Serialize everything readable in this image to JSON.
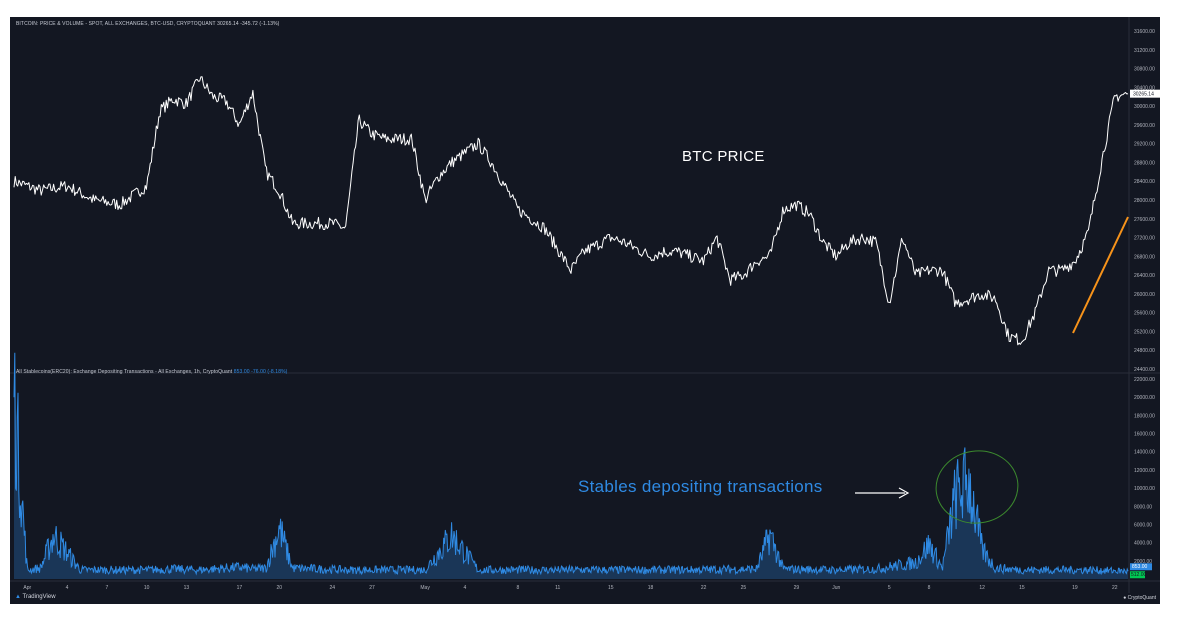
{
  "price_header": {
    "label": "BITCOIN: PRICE & VOLUME - SPOT, ALL EXCHANGES, BTC-USD, CRYPTOQUANT",
    "value": "30265.14",
    "change": "-345.72 (-1.13%)"
  },
  "stable_header": {
    "label": "All Stablecoins(ERC20): Exchange Depositing Transactions - All Exchanges, 1h, CryptoQuant",
    "value": "853.00",
    "change": "-76.00 (-8.18%)"
  },
  "annotations": {
    "btc_price": "BTC PRICE",
    "stables": "Stables depositing transactions"
  },
  "footer": {
    "tradingview": "TradingView",
    "cryptoquant": "CryptoQuant"
  },
  "colors": {
    "background": "#131722",
    "price_line": "#ffffff",
    "stable_line": "#2f8ae3",
    "trend_arrow": "#f7931a",
    "circle": "#3c8a2e",
    "last_stable_badge": "#00c853"
  },
  "chart_data": [
    {
      "type": "line",
      "series": [
        {
          "name": "",
          "points": [
            [
              "Mar 31",
              28400
            ],
            [
              "Apr 2",
              28200
            ],
            [
              "Apr 4",
              28300
            ],
            [
              "Apr 6",
              28000
            ],
            [
              "Apr 8",
              27900
            ],
            [
              "Apr 10",
              28300
            ],
            [
              "Apr 11",
              29900
            ],
            [
              "Apr 12",
              30150
            ],
            [
              "Apr 13",
              30050
            ],
            [
              "Apr 14",
              30600
            ],
            [
              "Apr 15",
              30200
            ],
            [
              "Apr 16",
              30100
            ],
            [
              "Apr 17",
              29600
            ],
            [
              "Apr 18",
              30300
            ],
            [
              "Apr 19",
              28600
            ],
            [
              "Apr 20",
              28200
            ],
            [
              "Apr 21",
              27500
            ],
            [
              "Apr 22",
              27500
            ],
            [
              "Apr 24",
              27500
            ],
            [
              "Apr 25",
              27400
            ],
            [
              "Apr 26",
              29700
            ],
            [
              "Apr 27",
              29400
            ],
            [
              "Apr 28",
              29300
            ],
            [
              "Apr 29",
              29300
            ],
            [
              "Apr 30",
              29300
            ],
            [
              "May 1",
              28000
            ],
            [
              "May 2",
              28500
            ],
            [
              "May 3",
              28800
            ],
            [
              "May 5",
              29200
            ],
            [
              "May 6",
              28800
            ],
            [
              "May 8",
              27800
            ],
            [
              "May 9",
              27600
            ],
            [
              "May 10",
              27400
            ],
            [
              "May 12",
              26500
            ],
            [
              "May 13",
              26900
            ],
            [
              "May 15",
              27200
            ],
            [
              "May 16",
              27100
            ],
            [
              "May 18",
              26800
            ],
            [
              "May 19",
              26900
            ],
            [
              "May 20",
              26900
            ],
            [
              "May 22",
              26700
            ],
            [
              "May 23",
              27200
            ],
            [
              "May 24",
              26300
            ],
            [
              "May 25",
              26400
            ],
            [
              "May 26",
              26700
            ],
            [
              "May 27",
              26800
            ],
            [
              "May 28",
              27800
            ],
            [
              "May 29",
              27900
            ],
            [
              "May 30",
              27700
            ],
            [
              "May 31",
              27100
            ],
            [
              "Jun 1",
              26800
            ],
            [
              "Jun 2",
              27100
            ],
            [
              "Jun 3",
              27200
            ],
            [
              "Jun 4",
              27100
            ],
            [
              "Jun 5",
              25800
            ],
            [
              "Jun 6",
              27200
            ],
            [
              "Jun 7",
              26400
            ],
            [
              "Jun 8",
              26500
            ],
            [
              "Jun 9",
              26500
            ],
            [
              "Jun 10",
              25800
            ],
            [
              "Jun 11",
              25900
            ],
            [
              "Jun 12",
              26000
            ],
            [
              "Jun 13",
              25900
            ],
            [
              "Jun 14",
              25100
            ],
            [
              "Jun 15",
              25000
            ],
            [
              "Jun 16",
              25600
            ],
            [
              "Jun 17",
              26500
            ],
            [
              "Jun 18",
              26500
            ],
            [
              "Jun 19",
              26700
            ],
            [
              "Jun 20",
              27300
            ],
            [
              "Jun 21",
              28800
            ],
            [
              "Jun 22",
              30200
            ],
            [
              "Jun 23",
              30265
            ]
          ]
        }
      ],
      "y_ticks": [
        "24400.00",
        "24800.00",
        "25200.00",
        "25600.00",
        "26000.00",
        "26400.00",
        "26800.00",
        "27200.00",
        "27600.00",
        "28000.00",
        "28400.00",
        "28800.00",
        "29200.00",
        "29600.00",
        "30000.00",
        "30400.00",
        "30800.00",
        "31200.00",
        "31600.00"
      ],
      "ylim": [
        24400,
        31600
      ],
      "last_value": "30265.14"
    },
    {
      "type": "area",
      "series": [
        {
          "name": "",
          "points": [
            [
              "Mar 31",
              20000
            ],
            [
              "Apr 1",
              1000
            ],
            [
              "Apr 2",
              1200
            ],
            [
              "Apr 3",
              4800
            ],
            [
              "Apr 5",
              1000
            ],
            [
              "Apr 10",
              1000
            ],
            [
              "Apr 12",
              1100
            ],
            [
              "Apr 14",
              1000
            ],
            [
              "Apr 17",
              1300
            ],
            [
              "Apr 18",
              1100
            ],
            [
              "Apr 19",
              1200
            ],
            [
              "Apr 20",
              5600
            ],
            [
              "Apr 21",
              1200
            ],
            [
              "Apr 25",
              1000
            ],
            [
              "May 1",
              1000
            ],
            [
              "May 3",
              4800
            ],
            [
              "May 5",
              1000
            ],
            [
              "May 10",
              1000
            ],
            [
              "May 15",
              1000
            ],
            [
              "May 20",
              1000
            ],
            [
              "May 26",
              1100
            ],
            [
              "May 27",
              4900
            ],
            [
              "May 28",
              1100
            ],
            [
              "Jun 1",
              1000
            ],
            [
              "Jun 4",
              1100
            ],
            [
              "Jun 7",
              1800
            ],
            [
              "Jun 8",
              3800
            ],
            [
              "Jun 9",
              1200
            ],
            [
              "Jun 10",
              9200
            ],
            [
              "Jun 11",
              10800
            ],
            [
              "Jun 12",
              3200
            ],
            [
              "Jun 13",
              1200
            ],
            [
              "Jun 15",
              1000
            ],
            [
              "Jun 18",
              1000
            ],
            [
              "Jun 20",
              1000
            ],
            [
              "Jun 23",
              853
            ]
          ]
        }
      ],
      "y_ticks": [
        "2000.00",
        "4000.00",
        "6000.00",
        "8000.00",
        "10000.00",
        "12000.00",
        "14000.00",
        "16000.00",
        "18000.00",
        "20000.00",
        "22000.00"
      ],
      "ylim": [
        0,
        22000
      ],
      "last_value": "853.00",
      "second_badge": "512.00"
    }
  ],
  "x_ticks": [
    "Apr",
    "4",
    "7",
    "10",
    "13",
    "17",
    "20",
    "24",
    "27",
    "May",
    "4",
    "8",
    "11",
    "15",
    "18",
    "22",
    "25",
    "29",
    "Jun",
    "5",
    "8",
    "12",
    "15",
    "19",
    "22"
  ]
}
